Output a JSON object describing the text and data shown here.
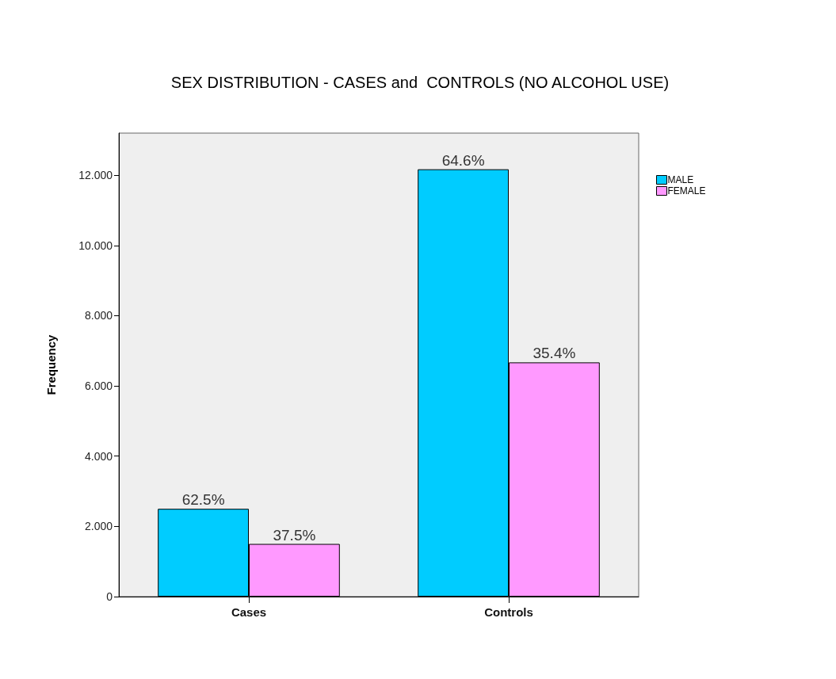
{
  "chart_data": {
    "type": "bar",
    "title": "SEX DISTRIBUTION - CASES and  CONTROLS (NO ALCOHOL USE)",
    "ylabel": "Frequency",
    "categories": [
      "Cases",
      "Controls"
    ],
    "series": [
      {
        "name": "MALE",
        "color": "#00ccff",
        "values": [
          2.5,
          12.17
        ]
      },
      {
        "name": "FEMALE",
        "color": "#ff99ff",
        "values": [
          1.5,
          6.67
        ]
      }
    ],
    "annotations": [
      {
        "text": "62.5%",
        "x": "Cases",
        "y": 2.5
      },
      {
        "text": "37.5%",
        "x": "Cases",
        "y": 1.5
      },
      {
        "text": "64.6%",
        "x": "Controls",
        "y": 12.17
      },
      {
        "text": "35.4%",
        "x": "Controls",
        "y": 6.67
      }
    ],
    "ylim": [
      0,
      13.2
    ],
    "yticks": [
      0,
      {
        "value": 2,
        "label": "2.000"
      },
      {
        "value": 4,
        "label": "4.000"
      },
      {
        "value": 6,
        "label": "6.000"
      },
      {
        "value": 8,
        "label": "8.000"
      },
      {
        "value": 10,
        "label": "10.000"
      },
      {
        "value": 12,
        "label": "12.000"
      }
    ],
    "legend": "top right",
    "grid": false
  }
}
